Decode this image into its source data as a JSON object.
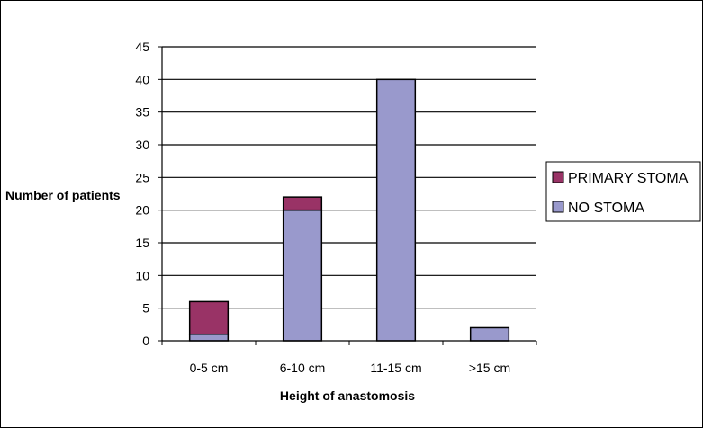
{
  "chart_data": {
    "type": "bar",
    "stacked": true,
    "categories": [
      "0-5 cm",
      "6-10 cm",
      "11-15 cm",
      ">15 cm"
    ],
    "series": [
      {
        "name": "NO STOMA",
        "values": [
          1,
          20,
          40,
          2
        ],
        "color": "#9999CC"
      },
      {
        "name": "PRIMARY STOMA",
        "values": [
          5,
          2,
          0,
          0
        ],
        "color": "#993366"
      }
    ],
    "xlabel": "Height of anastomosis",
    "ylabel": "Number of patients",
    "ylim": [
      0,
      45
    ],
    "yticks": [
      0,
      5,
      10,
      15,
      20,
      25,
      30,
      35,
      40,
      45
    ],
    "grid": true,
    "legend": {
      "placement": "right",
      "order": [
        "PRIMARY STOMA",
        "NO STOMA"
      ]
    }
  }
}
